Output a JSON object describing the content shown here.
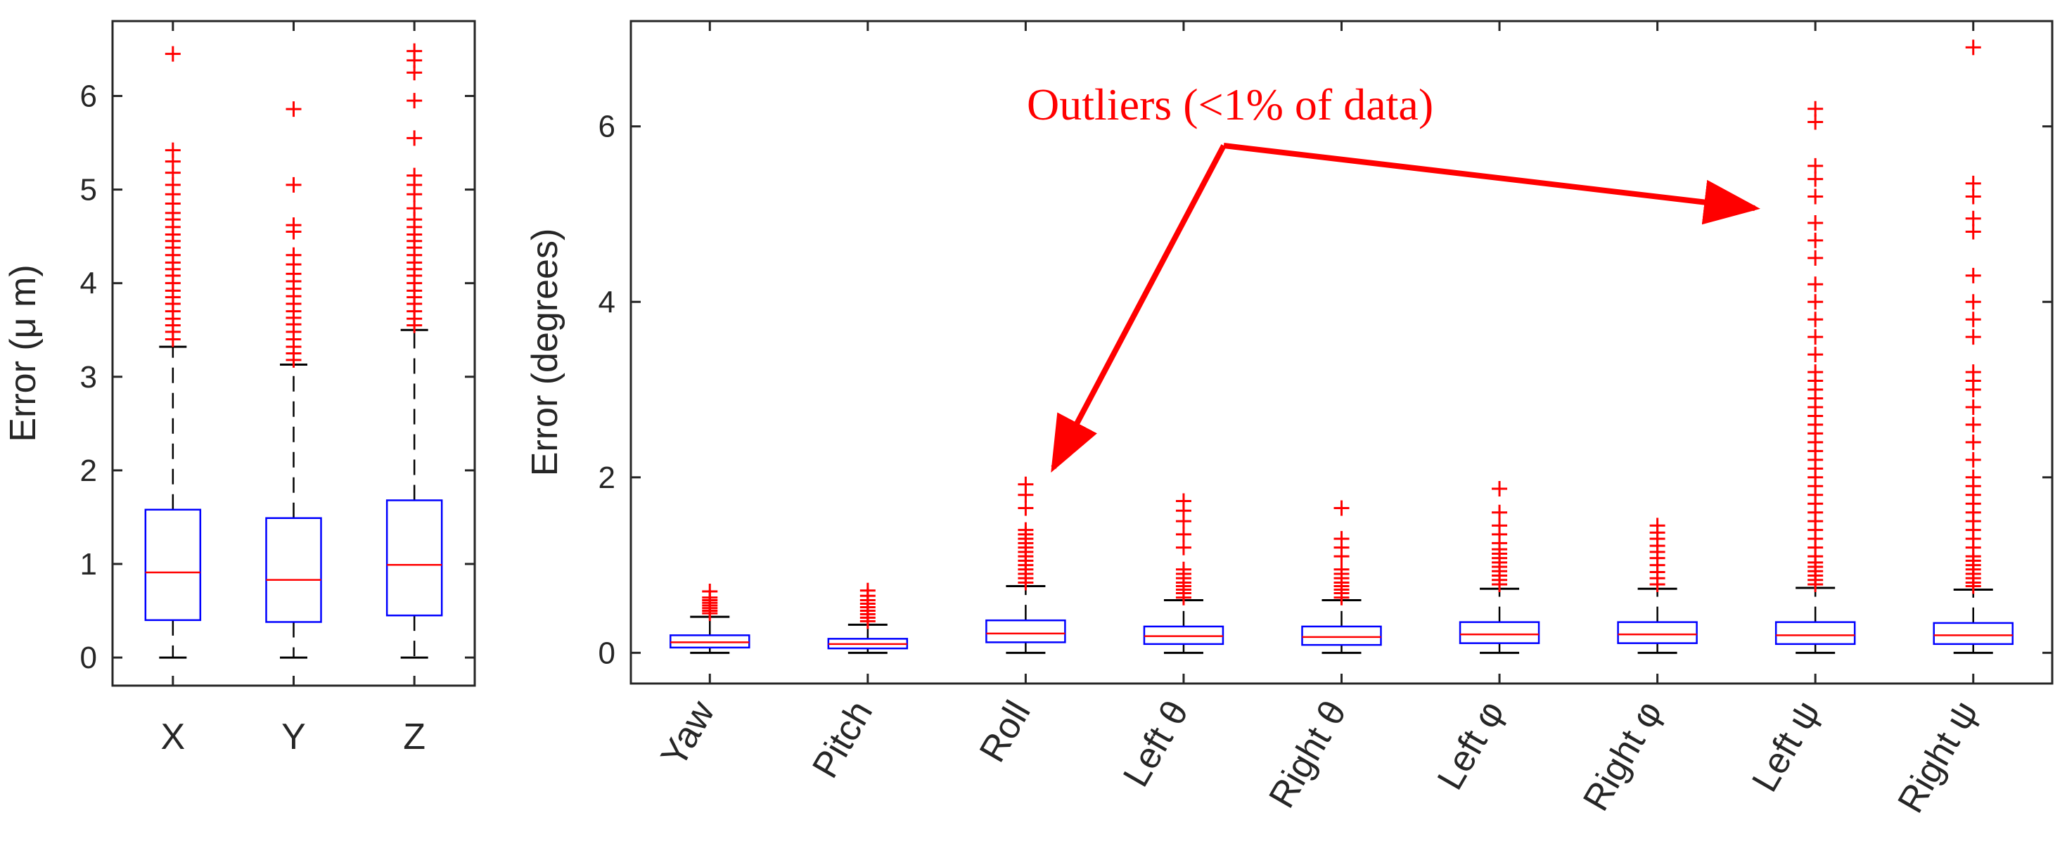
{
  "colors": {
    "box": "#0000ff",
    "median": "#ff0000",
    "outlier": "#ff0000",
    "whisker": "#000000",
    "axis": "#262626",
    "annotation": "#ff0000"
  },
  "annotation": {
    "text": "Outliers (<1% of data)"
  },
  "chart_data": [
    {
      "type": "boxplot",
      "title": "",
      "xlabel": "",
      "ylabel": "Error (μ m)",
      "ylim": [
        -0.3,
        6.8
      ],
      "yticks": [
        0,
        1,
        2,
        3,
        4,
        5,
        6
      ],
      "categories": [
        "X",
        "Y",
        "Z"
      ],
      "boxes": [
        {
          "name": "X",
          "lower_whisker": 0,
          "q1": 0.4,
          "median": 0.91,
          "q3": 1.58,
          "upper_whisker": 3.32,
          "outliers": [
            3.4,
            3.48,
            3.55,
            3.62,
            3.7,
            3.78,
            3.85,
            3.92,
            4.0,
            4.08,
            4.15,
            4.22,
            4.3,
            4.38,
            4.45,
            4.52,
            4.6,
            4.68,
            4.75,
            4.85,
            4.95,
            5.05,
            5.18,
            5.3,
            5.42,
            6.45
          ]
        },
        {
          "name": "Y",
          "lower_whisker": 0,
          "q1": 0.38,
          "median": 0.83,
          "q3": 1.49,
          "upper_whisker": 3.13,
          "outliers": [
            3.18,
            3.25,
            3.32,
            3.4,
            3.48,
            3.56,
            3.63,
            3.7,
            3.78,
            3.86,
            3.94,
            4.02,
            4.1,
            4.2,
            4.3,
            4.55,
            4.62,
            5.05,
            5.86
          ]
        },
        {
          "name": "Z",
          "lower_whisker": 0,
          "q1": 0.45,
          "median": 0.99,
          "q3": 1.68,
          "upper_whisker": 3.5,
          "outliers": [
            3.55,
            3.62,
            3.7,
            3.78,
            3.85,
            3.92,
            4.0,
            4.08,
            4.15,
            4.22,
            4.3,
            4.38,
            4.45,
            4.52,
            4.6,
            4.68,
            4.8,
            4.95,
            5.05,
            5.15,
            5.55,
            5.95,
            6.25,
            6.38,
            6.48
          ]
        }
      ]
    },
    {
      "type": "boxplot",
      "title": "",
      "xlabel": "",
      "ylabel": "Error (degrees)",
      "ylim": [
        -0.35,
        7.2
      ],
      "yticks": [
        0,
        2,
        4,
        6
      ],
      "categories": [
        "Yaw",
        "Pitch",
        "Roll",
        "Left θ",
        "Right θ",
        "Left φ",
        "Right φ",
        "Left ψ",
        "Right ψ"
      ],
      "boxes": [
        {
          "name": "Yaw",
          "lower_whisker": 0,
          "q1": 0.06,
          "median": 0.12,
          "q3": 0.2,
          "upper_whisker": 0.41,
          "outliers": [
            0.45,
            0.48,
            0.51,
            0.54,
            0.57,
            0.6,
            0.63,
            0.7
          ]
        },
        {
          "name": "Pitch",
          "lower_whisker": 0,
          "q1": 0.05,
          "median": 0.1,
          "q3": 0.16,
          "upper_whisker": 0.32,
          "outliers": [
            0.36,
            0.4,
            0.44,
            0.48,
            0.52,
            0.56,
            0.6,
            0.65,
            0.71
          ]
        },
        {
          "name": "Roll",
          "lower_whisker": 0,
          "q1": 0.12,
          "median": 0.22,
          "q3": 0.37,
          "upper_whisker": 0.76,
          "outliers": [
            0.8,
            0.85,
            0.9,
            0.95,
            1.0,
            1.05,
            1.1,
            1.15,
            1.2,
            1.25,
            1.3,
            1.35,
            1.4,
            1.65,
            1.8,
            1.92
          ]
        },
        {
          "name": "Left θ",
          "lower_whisker": 0,
          "q1": 0.1,
          "median": 0.19,
          "q3": 0.3,
          "upper_whisker": 0.6,
          "outliers": [
            0.63,
            0.68,
            0.72,
            0.76,
            0.8,
            0.85,
            0.9,
            0.95,
            1.2,
            1.35,
            1.5,
            1.62,
            1.73
          ]
        },
        {
          "name": "Right θ",
          "lower_whisker": 0,
          "q1": 0.09,
          "median": 0.18,
          "q3": 0.3,
          "upper_whisker": 0.6,
          "outliers": [
            0.63,
            0.68,
            0.72,
            0.76,
            0.8,
            0.85,
            0.9,
            0.95,
            1.1,
            1.2,
            1.3,
            1.65
          ]
        },
        {
          "name": "Left φ",
          "lower_whisker": 0,
          "q1": 0.11,
          "median": 0.21,
          "q3": 0.35,
          "upper_whisker": 0.73,
          "outliers": [
            0.78,
            0.83,
            0.88,
            0.93,
            0.98,
            1.03,
            1.08,
            1.13,
            1.18,
            1.25,
            1.35,
            1.45,
            1.6,
            1.87
          ]
        },
        {
          "name": "Right φ",
          "lower_whisker": 0,
          "q1": 0.11,
          "median": 0.21,
          "q3": 0.35,
          "upper_whisker": 0.73,
          "outliers": [
            0.78,
            0.85,
            0.92,
            1.0,
            1.08,
            1.15,
            1.22,
            1.3,
            1.37,
            1.45
          ]
        },
        {
          "name": "Left ψ",
          "lower_whisker": 0,
          "q1": 0.1,
          "median": 0.2,
          "q3": 0.35,
          "upper_whisker": 0.74,
          "outliers": [
            0.78,
            0.83,
            0.88,
            0.93,
            0.98,
            1.03,
            1.1,
            1.2,
            1.3,
            1.4,
            1.5,
            1.6,
            1.7,
            1.8,
            1.9,
            2.0,
            2.1,
            2.2,
            2.3,
            2.4,
            2.5,
            2.6,
            2.7,
            2.8,
            2.9,
            3.0,
            3.1,
            3.2,
            3.4,
            3.6,
            3.8,
            4.0,
            4.2,
            4.5,
            4.7,
            4.9,
            5.2,
            5.4,
            5.55,
            6.05,
            6.2
          ]
        },
        {
          "name": "Right ψ",
          "lower_whisker": 0,
          "q1": 0.1,
          "median": 0.2,
          "q3": 0.34,
          "upper_whisker": 0.72,
          "outliers": [
            0.76,
            0.8,
            0.85,
            0.9,
            0.95,
            1.0,
            1.05,
            1.1,
            1.2,
            1.3,
            1.4,
            1.5,
            1.6,
            1.7,
            1.8,
            1.9,
            2.0,
            2.2,
            2.4,
            2.6,
            2.8,
            3.0,
            3.1,
            3.2,
            3.6,
            3.8,
            4.0,
            4.3,
            4.8,
            4.95,
            5.2,
            5.35,
            6.9
          ]
        }
      ]
    }
  ]
}
